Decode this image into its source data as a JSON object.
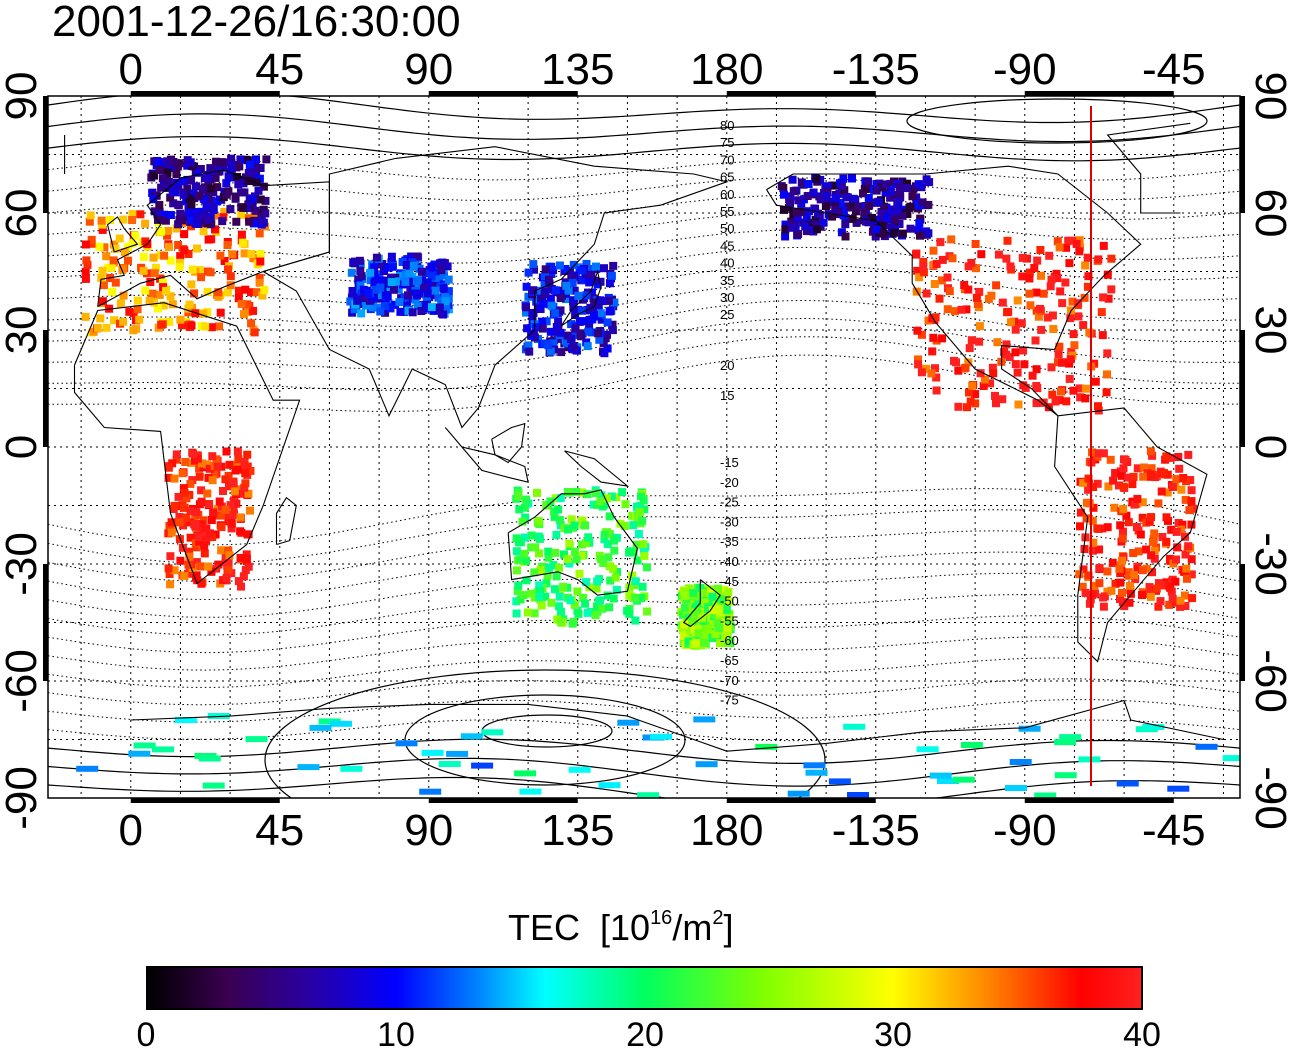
{
  "timestamp": "2001-12-26/16:30:00",
  "map": {
    "projection": "equirectangular",
    "center_longitude_ticks": [
      "0",
      "45",
      "90",
      "135",
      "180",
      "-135",
      "-90",
      "-45"
    ],
    "latitude_ticks": [
      "90",
      "60",
      "30",
      "0",
      "-30",
      "-60",
      "-90"
    ],
    "graticule_spacing_deg": 15,
    "terminator_longitude": -70,
    "terminator_color": "#e00000",
    "contour_labels_north": [
      "80",
      "75",
      "70",
      "65",
      "60",
      "55",
      "50",
      "45",
      "40",
      "35",
      "30",
      "25",
      "20",
      "15"
    ],
    "contour_labels_south": [
      "-15",
      "-20",
      "-25",
      "-30",
      "-35",
      "-40",
      "-45",
      "-50",
      "-55",
      "-60",
      "-65",
      "-70",
      "-75"
    ],
    "tec_regions": [
      {
        "name": "europe",
        "level": 0.85,
        "lon": [
          -15,
          40
        ],
        "lat": [
          30,
          62
        ]
      },
      {
        "name": "scandinavia",
        "level": 0.15,
        "lon": [
          5,
          40
        ],
        "lat": [
          58,
          75
        ]
      },
      {
        "name": "japan-east-asia",
        "level": 0.22,
        "lon": [
          118,
          145
        ],
        "lat": [
          25,
          48
        ]
      },
      {
        "name": "central-asia",
        "level": 0.25,
        "lon": [
          65,
          95
        ],
        "lat": [
          35,
          50
        ]
      },
      {
        "name": "north-america",
        "level": 0.95,
        "lon": [
          -125,
          -65
        ],
        "lat": [
          10,
          55
        ]
      },
      {
        "name": "canada-alaska",
        "level": 0.15,
        "lon": [
          -165,
          -120
        ],
        "lat": [
          55,
          70
        ]
      },
      {
        "name": "south-america",
        "level": 0.95,
        "lon": [
          -75,
          -40
        ],
        "lat": [
          -40,
          0
        ]
      },
      {
        "name": "africa",
        "level": 0.95,
        "lon": [
          10,
          35
        ],
        "lat": [
          -35,
          0
        ]
      },
      {
        "name": "australia",
        "level": 0.55,
        "lon": [
          115,
          155
        ],
        "lat": [
          -45,
          -10
        ]
      },
      {
        "name": "new-zealand",
        "level": 0.6,
        "lon": [
          165,
          180
        ],
        "lat": [
          -50,
          -35
        ]
      },
      {
        "name": "antarctica",
        "level": 0.4,
        "lon": [
          -20,
          330
        ],
        "lat": [
          -90,
          -68
        ]
      }
    ]
  },
  "colorbar": {
    "title_main": "TEC",
    "title_unit_prefix": "[10",
    "title_exp": "16",
    "title_mid": "/m",
    "title_sq": "2",
    "title_close": "]",
    "labels": [
      "0",
      "10",
      "20",
      "30",
      "40"
    ],
    "min": 0,
    "max": 40,
    "colors": [
      "#000000",
      "#3a0050",
      "#2a00a0",
      "#0000ff",
      "#0080ff",
      "#00ffff",
      "#00ff60",
      "#80ff00",
      "#ffff00",
      "#ff8000",
      "#ff0000",
      "#ff2020"
    ]
  }
}
